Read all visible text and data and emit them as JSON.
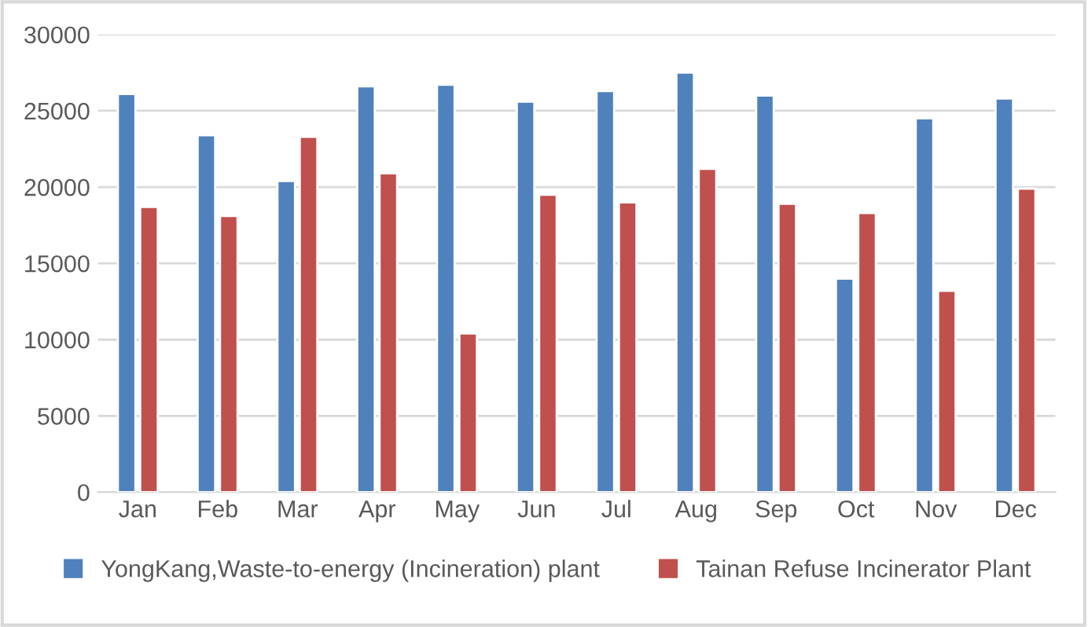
{
  "chart_data": {
    "type": "bar",
    "categories": [
      "Jan",
      "Feb",
      "Mar",
      "Apr",
      "May",
      "Jun",
      "Jul",
      "Aug",
      "Sep",
      "Oct",
      "Nov",
      "Dec"
    ],
    "series": [
      {
        "name": "YongKang,Waste-to-energy (Incineration) plant",
        "color": "#4f81bd",
        "values": [
          26100,
          23400,
          20400,
          26600,
          26700,
          25600,
          26300,
          27500,
          26000,
          14000,
          24500,
          25800
        ]
      },
      {
        "name": "Tainan Refuse Incinerator Plant",
        "color": "#c0504d",
        "values": [
          18700,
          18100,
          23300,
          20900,
          10400,
          19500,
          19000,
          21200,
          18900,
          18300,
          13200,
          19900
        ]
      }
    ],
    "ylim": [
      0,
      30000
    ],
    "yticks": [
      0,
      5000,
      10000,
      15000,
      20000,
      25000,
      30000
    ],
    "grid": "y",
    "legend": "bottom"
  }
}
